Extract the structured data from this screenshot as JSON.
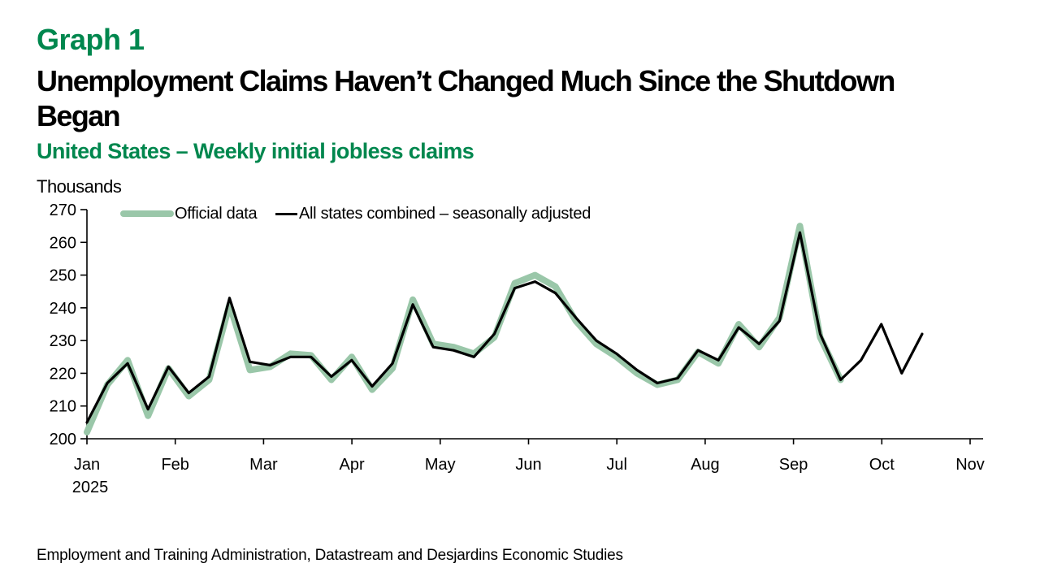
{
  "header": {
    "graph_label": "Graph 1",
    "title_line1": "Unemployment Claims Haven’t Changed Much Since the Shutdown",
    "title_line2": "Began",
    "subtitle": "United States – Weekly initial jobless claims",
    "unit_label": "Thousands"
  },
  "legend": [
    {
      "label": "Official data",
      "color": "#9ac7a9",
      "thickness": 8
    },
    {
      "label": "All states combined – seasonally adjusted",
      "color": "#000000",
      "thickness": 3
    }
  ],
  "footer": {
    "source": "Employment and Training Administration, Datastream and Desjardins Economic Studies"
  },
  "colors": {
    "accent_green": "#00874e",
    "line_green": "#9ac7a9",
    "line_black": "#000000",
    "axis_black": "#000000"
  },
  "chart_data": {
    "type": "line",
    "title": "Unemployment Claims Haven’t Changed Much Since the Shutdown Began",
    "subtitle": "United States – Weekly initial jobless claims",
    "ylabel": "Thousands",
    "ylim": [
      200,
      270
    ],
    "y_ticks": [
      200,
      210,
      220,
      230,
      240,
      250,
      260,
      270
    ],
    "x_tick_labels": [
      "Jan",
      "Feb",
      "Mar",
      "Apr",
      "May",
      "Jun",
      "Jul",
      "Aug",
      "Sep",
      "Oct",
      "Nov"
    ],
    "x_sub_label": "2025",
    "x_unit": "week",
    "grid": false,
    "legend_position": "top-left-inside",
    "series": [
      {
        "name": "Official data",
        "color": "#9ac7a9",
        "width": 8,
        "values": [
          202,
          216.5,
          224,
          207,
          221.5,
          213,
          218,
          241,
          221,
          222,
          226,
          225.5,
          218,
          225,
          215,
          221.5,
          242.5,
          229,
          228,
          226,
          231,
          247.5,
          250,
          246.5,
          236,
          229,
          225,
          220,
          216.5,
          218,
          226.5,
          223,
          235,
          228,
          237,
          265,
          231,
          218
        ]
      },
      {
        "name": "All states combined – seasonally adjusted",
        "color": "#000000",
        "width": 3.2,
        "values": [
          205,
          217,
          223,
          209,
          222,
          214,
          219,
          243,
          223.5,
          222.5,
          225,
          225,
          219,
          224,
          216,
          223,
          241,
          228,
          227,
          225,
          232,
          246,
          248,
          244.5,
          237,
          230,
          226,
          221,
          217,
          218.5,
          227,
          224,
          234,
          229,
          236,
          263,
          232,
          218,
          224,
          235,
          220,
          232
        ]
      }
    ]
  }
}
